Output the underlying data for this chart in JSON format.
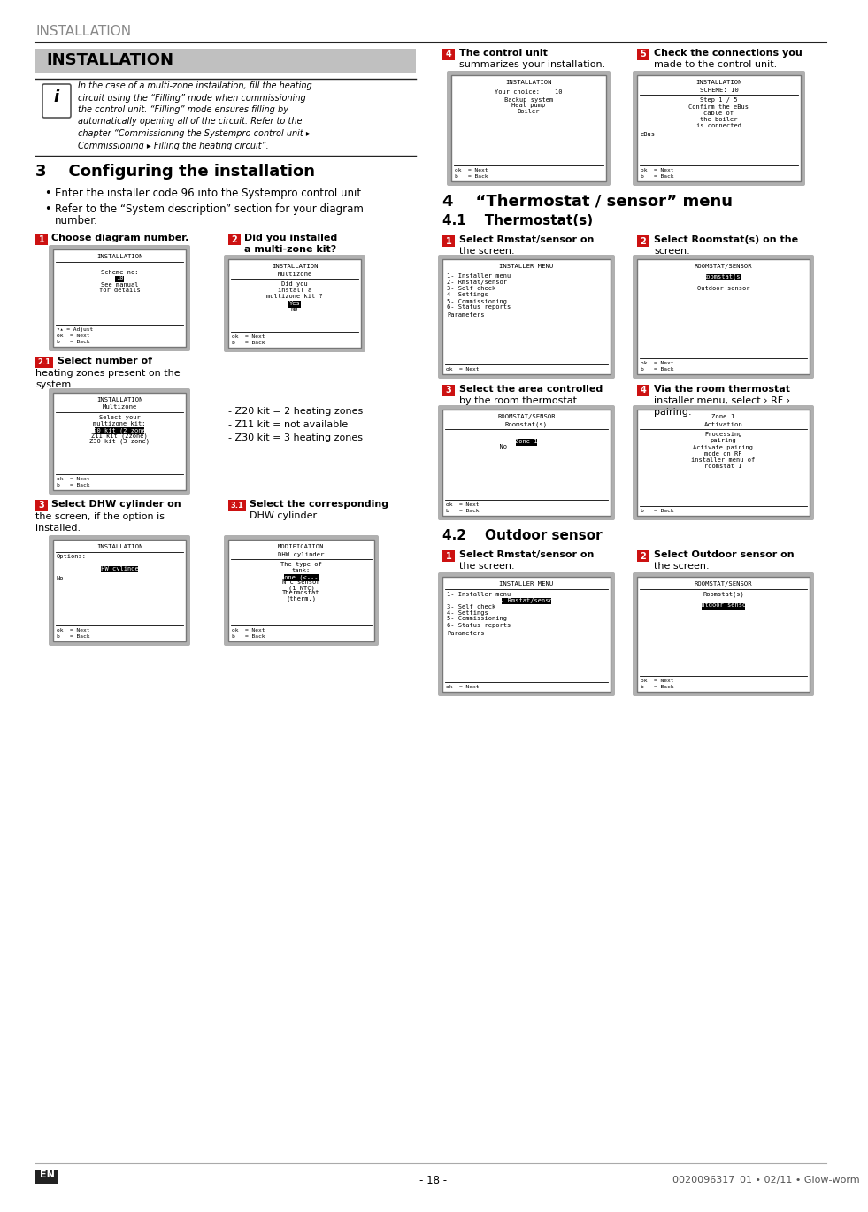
{
  "page_title": "INSTALLATION",
  "section_title": "INSTALLATION",
  "info_text_lines": [
    "In the case of a multi-zone installation, fill the heating",
    "circuit using the “Filling” mode when commissioning",
    "the control unit. “Filling” mode ensures filling by",
    "automatically opening all of the circuit. Refer to the",
    "chapter “Commissioning the Systempro control unit ▸",
    "Commissioning ▸ Filling the heating circuit”."
  ],
  "sec3_title": "3    Configuring the installation",
  "bullet1": "Enter the installer code 96 into the Systempro control unit.",
  "bullet2a": "Refer to the “System description” section for your diagram",
  "bullet2b": "number.",
  "sec4_title": "4    “Thermostat / sensor” menu",
  "sec41_title": "4.1    Thermostat(s)",
  "sec42_title": "4.2    Outdoor sensor",
  "footer_left": "- 18 -",
  "footer_right": "0020096317_01 • 02/11 • Glow-worm",
  "red": "#cc1111",
  "gray_header": "#c0c0c0",
  "dark": "#222222",
  "mid_gray": "#888888"
}
